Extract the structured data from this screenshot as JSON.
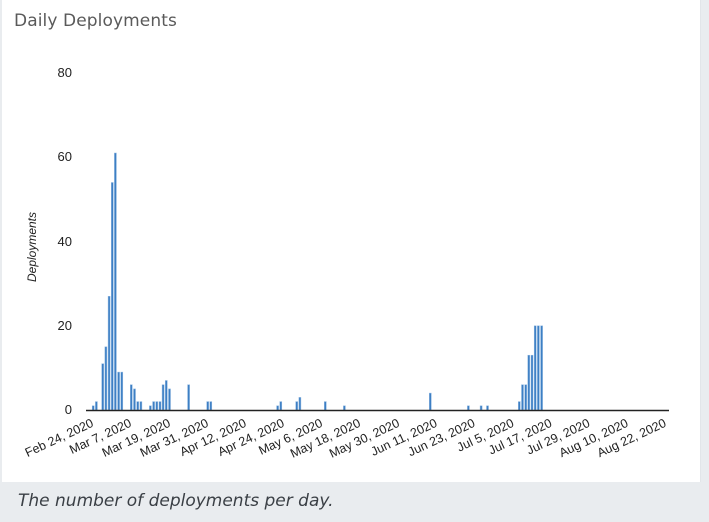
{
  "card": {
    "title": "Daily Deployments",
    "caption": "The number of deployments per day."
  },
  "colors": {
    "bar": "#3d7fc4",
    "bar_edge": "#8fb7e0",
    "axis": "#222222"
  },
  "chart_data": {
    "type": "bar",
    "title": "Daily Deployments",
    "xlabel": "",
    "ylabel": "Deployments",
    "ylim": [
      0,
      80
    ],
    "yticks": [
      0,
      20,
      40,
      60,
      80
    ],
    "xtick_labels": [
      "Feb 24, 2020",
      "Mar 7, 2020",
      "Mar 19, 2020",
      "Mar 31, 2020",
      "Apr 12, 2020",
      "Apr 24, 2020",
      "May 6, 2020",
      "May 18, 2020",
      "May 30, 2020",
      "Jun 11, 2020",
      "Jun 23, 2020",
      "Jul 5, 2020",
      "Jul 17, 2020",
      "Jul 29, 2020",
      "Aug 10, 2020",
      "Aug 22, 2020"
    ],
    "x_start": "Feb 24, 2020",
    "x_end": "Aug 22, 2020",
    "grid": false,
    "legend": null,
    "categories": [
      "Feb 25, 2020",
      "Feb 26, 2020",
      "Feb 28, 2020",
      "Feb 29, 2020",
      "Mar 1, 2020",
      "Mar 2, 2020",
      "Mar 3, 2020",
      "Mar 4, 2020",
      "Mar 5, 2020",
      "Mar 8, 2020",
      "Mar 9, 2020",
      "Mar 10, 2020",
      "Mar 11, 2020",
      "Mar 14, 2020",
      "Mar 15, 2020",
      "Mar 16, 2020",
      "Mar 17, 2020",
      "Mar 18, 2020",
      "Mar 19, 2020",
      "Mar 20, 2020",
      "Mar 26, 2020",
      "Apr 1, 2020",
      "Apr 2, 2020",
      "Apr 23, 2020",
      "Apr 24, 2020",
      "Apr 29, 2020",
      "Apr 30, 2020",
      "May 8, 2020",
      "May 14, 2020",
      "Jun 10, 2020",
      "Jun 22, 2020",
      "Jun 26, 2020",
      "Jun 28, 2020",
      "Jul 8, 2020",
      "Jul 9, 2020",
      "Jul 10, 2020",
      "Jul 11, 2020",
      "Jul 12, 2020",
      "Jul 13, 2020",
      "Jul 14, 2020",
      "Jul 15, 2020"
    ],
    "day_index": [
      1,
      2,
      4,
      5,
      6,
      7,
      8,
      9,
      10,
      13,
      14,
      15,
      16,
      19,
      20,
      21,
      22,
      23,
      24,
      25,
      31,
      37,
      38,
      59,
      60,
      65,
      66,
      74,
      80,
      107,
      119,
      123,
      125,
      135,
      136,
      137,
      138,
      139,
      140,
      141,
      142
    ],
    "values": [
      1,
      2,
      11,
      15,
      27,
      54,
      61,
      9,
      9,
      6,
      5,
      2,
      2,
      1,
      2,
      2,
      2,
      6,
      7,
      5,
      6,
      2,
      2,
      1,
      2,
      2,
      3,
      2,
      1,
      4,
      1,
      1,
      1,
      2,
      6,
      6,
      13,
      13,
      20,
      20,
      20
    ]
  }
}
